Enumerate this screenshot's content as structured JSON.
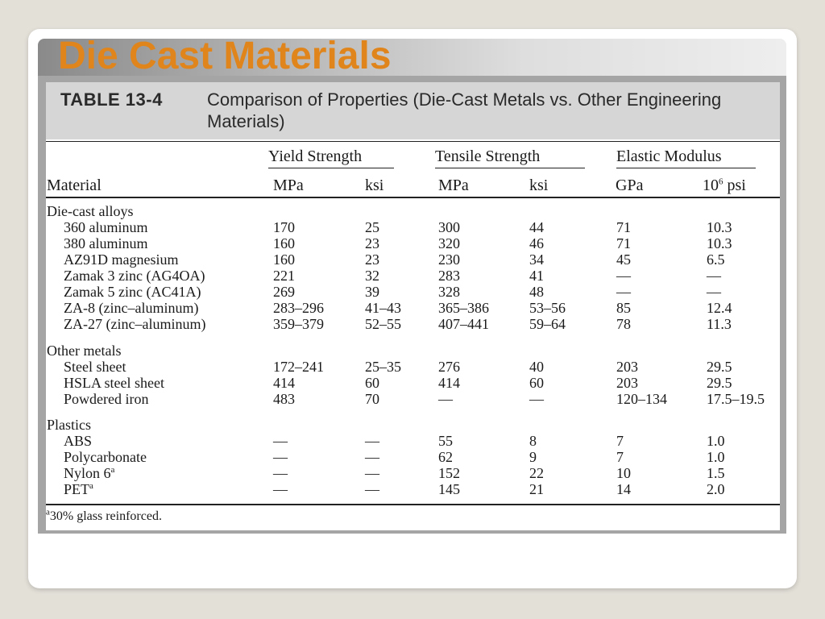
{
  "slide": {
    "title": "Die Cast Materials"
  },
  "table": {
    "number": "TABLE 13-4",
    "caption": "Comparison of Properties (Die-Cast Metals vs. Other Engineering Materials)",
    "groups": {
      "yield": "Yield Strength",
      "tensile": "Tensile Strength",
      "modulus": "Elastic Modulus"
    },
    "headers": {
      "material": "Material",
      "yield_mpa": "MPa",
      "yield_ksi": "ksi",
      "tensile_mpa": "MPa",
      "tensile_ksi": "ksi",
      "mod_gpa": "GPa",
      "mod_psi_base": "10",
      "mod_psi_exp": "6",
      "mod_psi_unit": " psi"
    },
    "sections": [
      {
        "name": "Die-cast alloys",
        "rows": [
          {
            "material": "360 aluminum",
            "note": "",
            "y_mpa": "170",
            "y_ksi": "25",
            "t_mpa": "300",
            "t_ksi": "44",
            "e_gpa": "71",
            "e_psi": "10.3"
          },
          {
            "material": "380 aluminum",
            "note": "",
            "y_mpa": "160",
            "y_ksi": "23",
            "t_mpa": "320",
            "t_ksi": "46",
            "e_gpa": "71",
            "e_psi": "10.3"
          },
          {
            "material": "AZ91D magnesium",
            "note": "",
            "y_mpa": "160",
            "y_ksi": "23",
            "t_mpa": "230",
            "t_ksi": "34",
            "e_gpa": "45",
            "e_psi": "6.5"
          },
          {
            "material": "Zamak 3 zinc (AG4OA)",
            "note": "",
            "y_mpa": "221",
            "y_ksi": "32",
            "t_mpa": "283",
            "t_ksi": "41",
            "e_gpa": "—",
            "e_psi": "—"
          },
          {
            "material": "Zamak 5 zinc (AC41A)",
            "note": "",
            "y_mpa": "269",
            "y_ksi": "39",
            "t_mpa": "328",
            "t_ksi": "48",
            "e_gpa": "—",
            "e_psi": "—"
          },
          {
            "material": "ZA-8 (zinc–aluminum)",
            "note": "",
            "y_mpa": "283–296",
            "y_ksi": "41–43",
            "t_mpa": "365–386",
            "t_ksi": "53–56",
            "e_gpa": "85",
            "e_psi": "12.4"
          },
          {
            "material": "ZA-27 (zinc–aluminum)",
            "note": "",
            "y_mpa": "359–379",
            "y_ksi": "52–55",
            "t_mpa": "407–441",
            "t_ksi": "59–64",
            "e_gpa": "78",
            "e_psi": "11.3"
          }
        ]
      },
      {
        "name": "Other metals",
        "rows": [
          {
            "material": "Steel sheet",
            "note": "",
            "y_mpa": "172–241",
            "y_ksi": "25–35",
            "t_mpa": "276",
            "t_ksi": "40",
            "e_gpa": "203",
            "e_psi": "29.5"
          },
          {
            "material": "HSLA steel sheet",
            "note": "",
            "y_mpa": "414",
            "y_ksi": "60",
            "t_mpa": "414",
            "t_ksi": "60",
            "e_gpa": "203",
            "e_psi": "29.5"
          },
          {
            "material": "Powdered iron",
            "note": "",
            "y_mpa": "483",
            "y_ksi": "70",
            "t_mpa": "—",
            "t_ksi": "—",
            "e_gpa": "120–134",
            "e_psi": "17.5–19.5"
          }
        ]
      },
      {
        "name": "Plastics",
        "rows": [
          {
            "material": "ABS",
            "note": "",
            "y_mpa": "—",
            "y_ksi": "—",
            "t_mpa": "55",
            "t_ksi": "8",
            "e_gpa": "7",
            "e_psi": "1.0"
          },
          {
            "material": "Polycarbonate",
            "note": "",
            "y_mpa": "—",
            "y_ksi": "—",
            "t_mpa": "62",
            "t_ksi": "9",
            "e_gpa": "7",
            "e_psi": "1.0"
          },
          {
            "material": "Nylon 6",
            "note": "a",
            "y_mpa": "—",
            "y_ksi": "—",
            "t_mpa": "152",
            "t_ksi": "22",
            "e_gpa": "10",
            "e_psi": "1.5"
          },
          {
            "material": "PET",
            "note": "a",
            "y_mpa": "—",
            "y_ksi": "—",
            "t_mpa": "145",
            "t_ksi": "21",
            "e_gpa": "14",
            "e_psi": "2.0"
          }
        ]
      }
    ],
    "footnote": {
      "mark": "a",
      "text": "30% glass reinforced."
    }
  }
}
